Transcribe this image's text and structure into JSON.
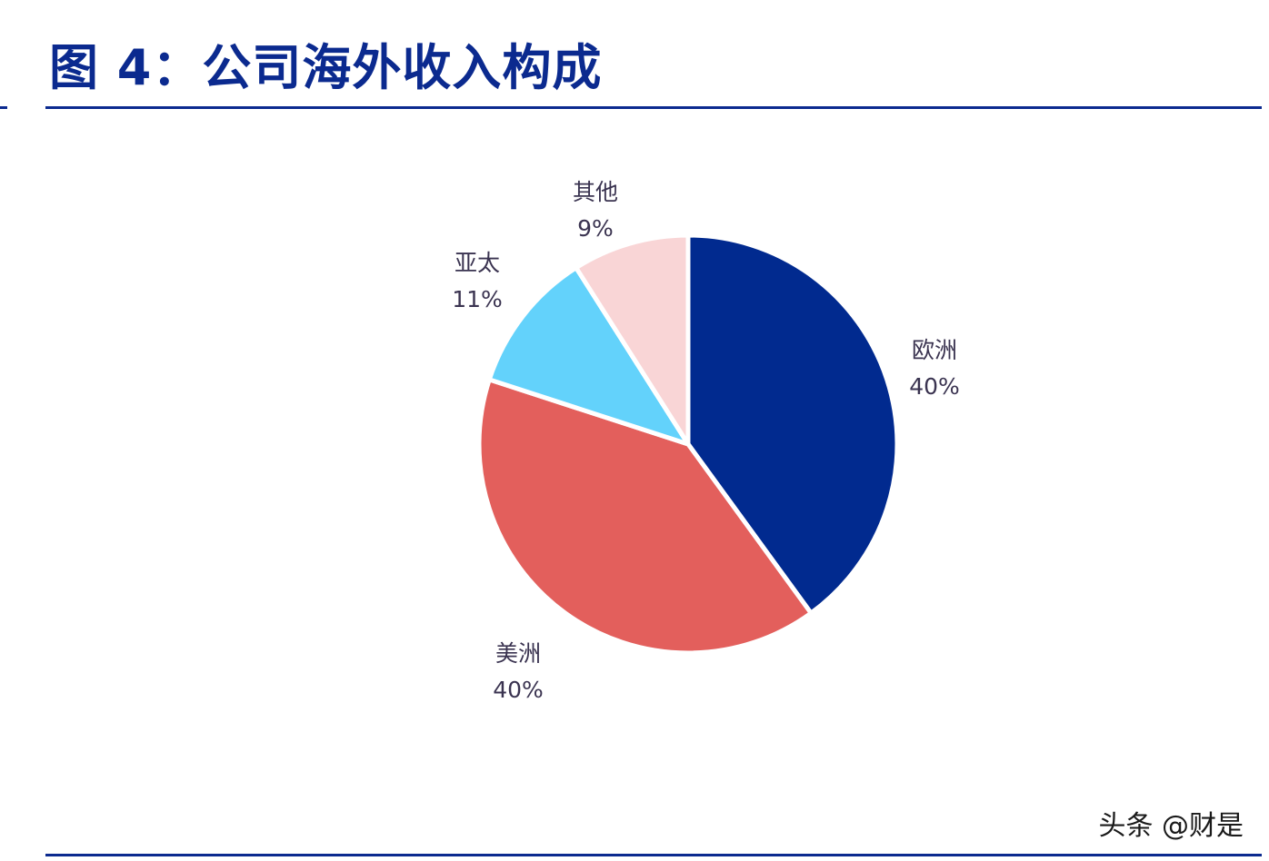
{
  "header": {
    "title": "图 4：公司海外收入构成"
  },
  "watermark": "头条 @财是",
  "chart_data": {
    "type": "pie",
    "title": "",
    "slices": [
      {
        "label": "欧洲",
        "value": 40,
        "display": "40%",
        "color": "#012a8f"
      },
      {
        "label": "美洲",
        "value": 40,
        "display": "40%",
        "color": "#e35f5c"
      },
      {
        "label": "亚太",
        "value": 11,
        "display": "11%",
        "color": "#63d2fb"
      },
      {
        "label": "其他",
        "value": 9,
        "display": "9%",
        "color": "#f9d5d6"
      }
    ]
  }
}
